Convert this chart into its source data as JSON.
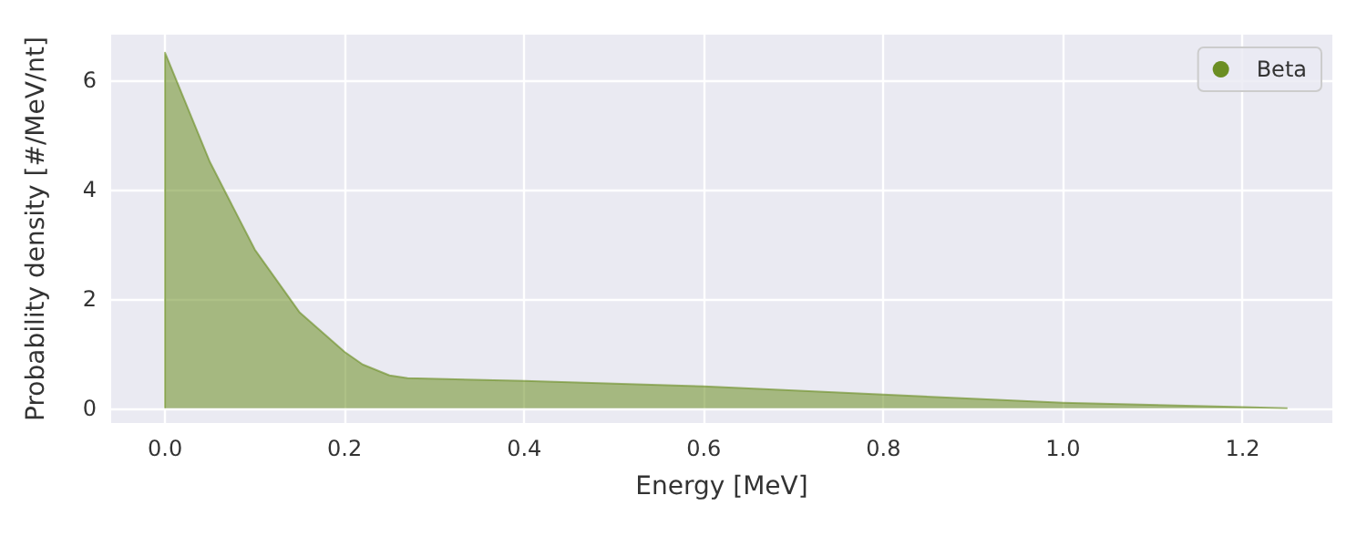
{
  "chart_data": {
    "type": "area",
    "xlabel": "Energy [MeV]",
    "ylabel": "Probability density [#/MeV/nt]",
    "series": [
      {
        "name": "Beta",
        "color": "#6b8e23",
        "x": [
          0,
          0,
          0.05,
          0.1,
          0.15,
          0.2,
          0.22,
          0.25,
          0.27,
          0.4,
          0.6,
          0.8,
          1.0,
          1.2,
          1.25
        ],
        "values": [
          0,
          6.5,
          4.5,
          2.9,
          1.75,
          1.03,
          0.8,
          0.6,
          0.55,
          0.5,
          0.4,
          0.25,
          0.1,
          0.02,
          0
        ]
      }
    ],
    "xlim": [
      -0.06,
      1.3
    ],
    "xticks": [
      {
        "value": 0,
        "label": "0.0"
      },
      0.2,
      0.4,
      0.6,
      0.8,
      {
        "value": 1,
        "label": "1.0"
      },
      1.2
    ],
    "ylim": [
      -0.27,
      6.83
    ],
    "yticks": [
      0,
      2,
      4,
      6
    ],
    "grid": true,
    "legend": "top right"
  }
}
